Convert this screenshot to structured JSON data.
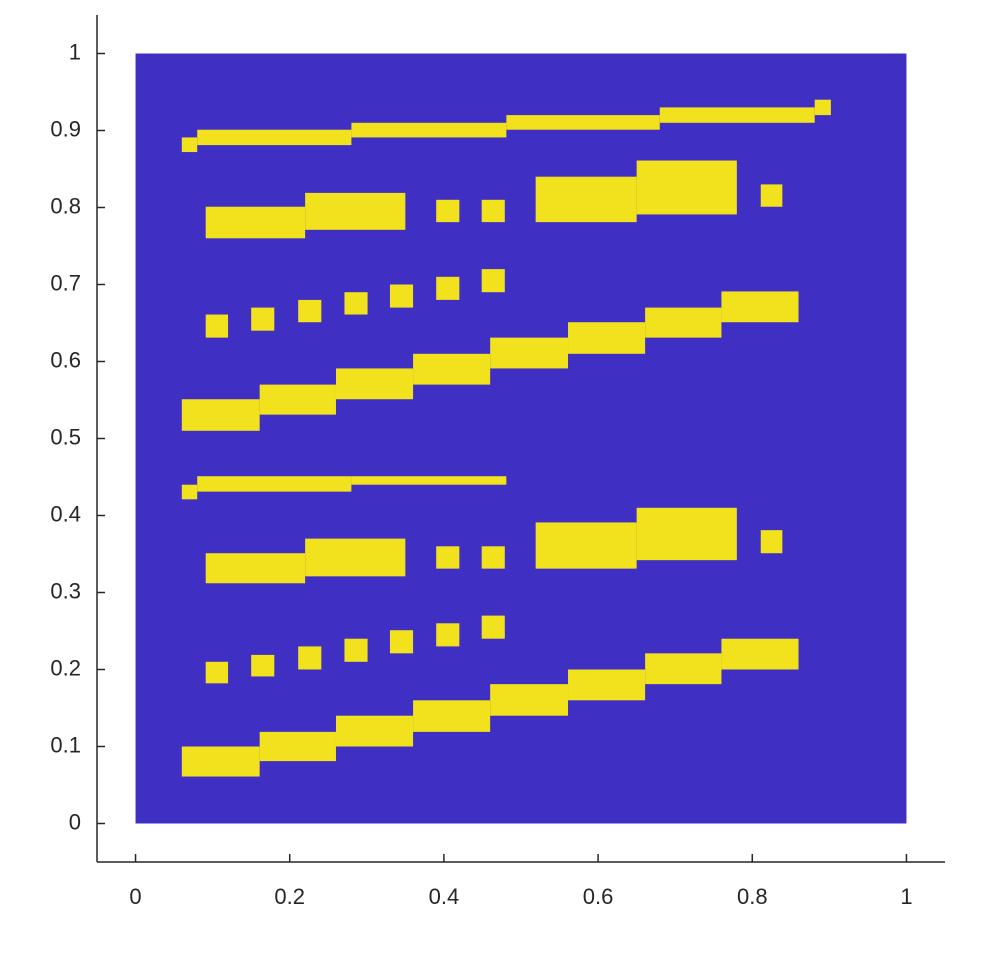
{
  "chart_data": {
    "type": "rects",
    "xlim": [
      -0.05,
      1.05
    ],
    "ylim": [
      -0.05,
      1.05
    ],
    "xticks": [
      0,
      0.2,
      0.4,
      0.6,
      0.8,
      1
    ],
    "yticks": [
      0,
      0.1,
      0.2,
      0.3,
      0.4,
      0.5,
      0.6,
      0.7,
      0.8,
      0.9,
      1
    ],
    "grid": false,
    "background": {
      "x": [
        0,
        1
      ],
      "y": [
        0,
        1
      ],
      "color": "#3f2fc2"
    },
    "rects": {
      "color": "#f2e11d",
      "x0": [
        0.06,
        0.08,
        0.28,
        0.481,
        0.68,
        0.881,
        0.091,
        0.22,
        0.39,
        0.449,
        0.519,
        0.65,
        0.811,
        0.091,
        0.15,
        0.211,
        0.271,
        0.33,
        0.39,
        0.449,
        0.06,
        0.161,
        0.26,
        0.36,
        0.46,
        0.561,
        0.661,
        0.76,
        0.06,
        0.08,
        0.28,
        0.091,
        0.22,
        0.39,
        0.449,
        0.519,
        0.65,
        0.811,
        0.091,
        0.15,
        0.211,
        0.271,
        0.33,
        0.39,
        0.449,
        0.06,
        0.161,
        0.26,
        0.36,
        0.46,
        0.561,
        0.661,
        0.76
      ],
      "x1": [
        0.08,
        0.28,
        0.481,
        0.68,
        0.881,
        0.902,
        0.22,
        0.35,
        0.42,
        0.479,
        0.65,
        0.78,
        0.839,
        0.12,
        0.18,
        0.241,
        0.301,
        0.36,
        0.42,
        0.479,
        0.161,
        0.26,
        0.36,
        0.46,
        0.561,
        0.661,
        0.76,
        0.86,
        0.08,
        0.28,
        0.481,
        0.22,
        0.35,
        0.42,
        0.479,
        0.65,
        0.78,
        0.839,
        0.12,
        0.18,
        0.241,
        0.301,
        0.36,
        0.42,
        0.479,
        0.161,
        0.26,
        0.36,
        0.46,
        0.561,
        0.661,
        0.76,
        0.86
      ],
      "y0": [
        0.872,
        0.881,
        0.891,
        0.901,
        0.91,
        0.92,
        0.76,
        0.771,
        0.781,
        0.781,
        0.781,
        0.791,
        0.801,
        0.631,
        0.64,
        0.651,
        0.661,
        0.67,
        0.68,
        0.69,
        0.51,
        0.531,
        0.551,
        0.57,
        0.591,
        0.61,
        0.631,
        0.651,
        0.421,
        0.431,
        0.44,
        0.312,
        0.321,
        0.331,
        0.331,
        0.331,
        0.342,
        0.351,
        0.182,
        0.191,
        0.2,
        0.21,
        0.221,
        0.23,
        0.24,
        0.061,
        0.081,
        0.1,
        0.119,
        0.14,
        0.16,
        0.181,
        0.2
      ],
      "y1": [
        0.891,
        0.901,
        0.91,
        0.92,
        0.93,
        0.94,
        0.801,
        0.819,
        0.81,
        0.81,
        0.84,
        0.861,
        0.83,
        0.661,
        0.67,
        0.68,
        0.69,
        0.7,
        0.71,
        0.72,
        0.551,
        0.57,
        0.591,
        0.61,
        0.631,
        0.651,
        0.67,
        0.691,
        0.44,
        0.451,
        0.451,
        0.351,
        0.37,
        0.36,
        0.36,
        0.391,
        0.41,
        0.381,
        0.21,
        0.219,
        0.23,
        0.24,
        0.251,
        0.26,
        0.27,
        0.1,
        0.119,
        0.14,
        0.16,
        0.181,
        0.2,
        0.221,
        0.24
      ]
    }
  }
}
